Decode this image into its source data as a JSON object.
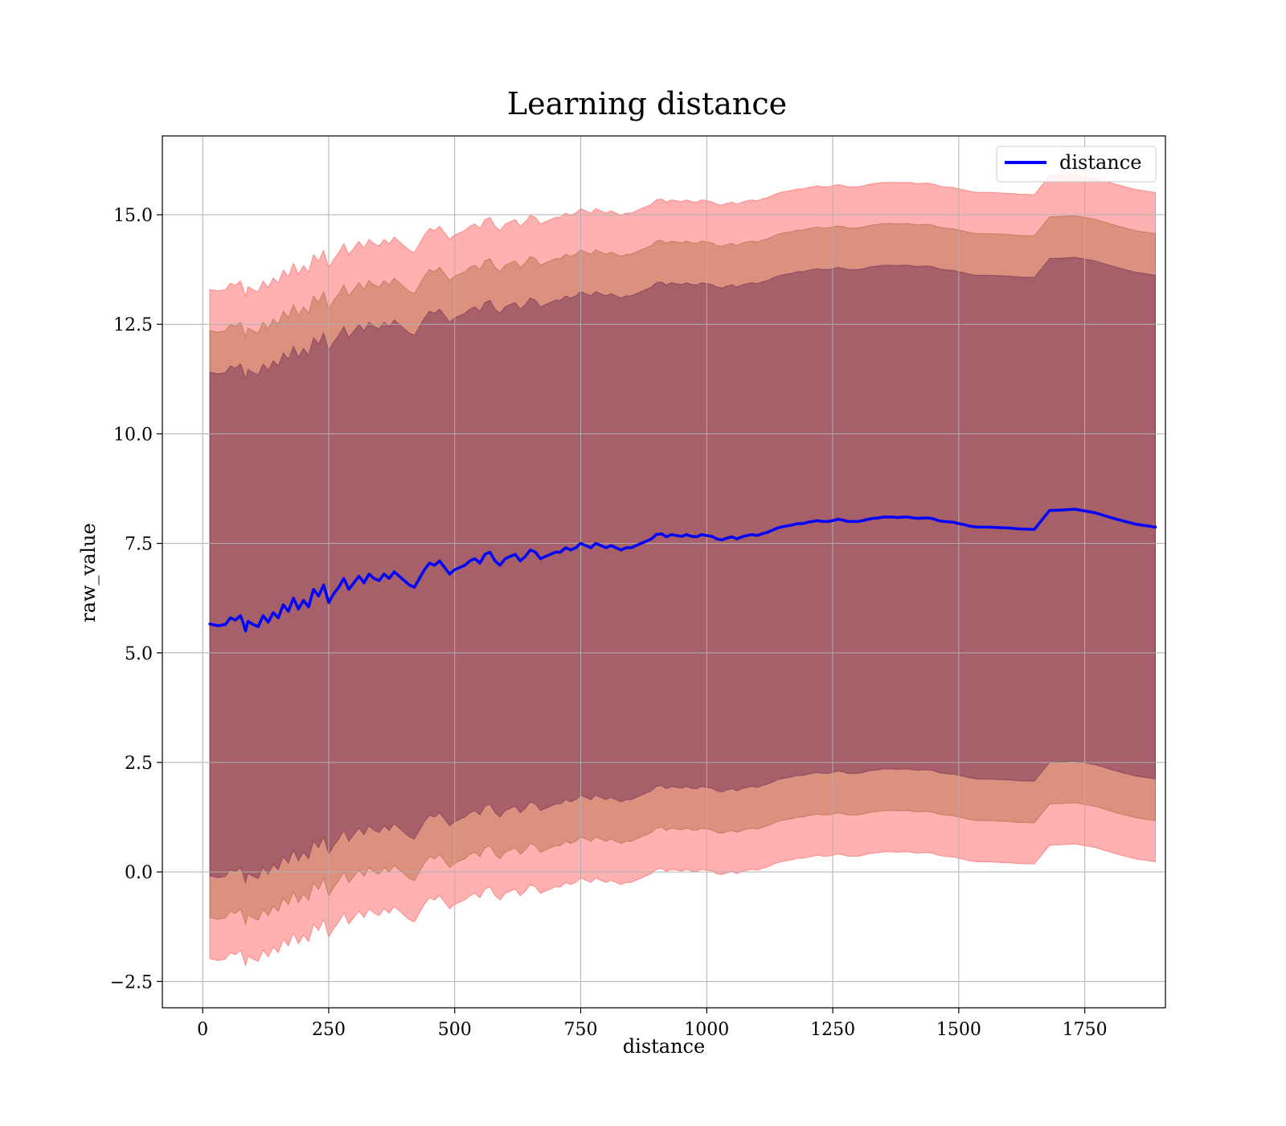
{
  "chart_data": {
    "type": "line",
    "title": "Learning distance",
    "xlabel": "distance",
    "ylabel": "raw_value",
    "xlim": [
      -80,
      1910
    ],
    "ylim": [
      -3.1,
      16.8
    ],
    "x_ticks": [
      0,
      250,
      500,
      750,
      1000,
      1250,
      1500,
      1750
    ],
    "x_tick_labels": [
      "0",
      "250",
      "500",
      "750",
      "1000",
      "1250",
      "1500",
      "1750"
    ],
    "y_ticks": [
      -2.5,
      0.0,
      2.5,
      5.0,
      7.5,
      10.0,
      12.5,
      15.0
    ],
    "y_tick_labels": [
      "−2.5",
      "0.0",
      "2.5",
      "5.0",
      "7.5",
      "10.0",
      "12.5",
      "15.0"
    ],
    "grid": true,
    "legend_position": "top-right",
    "series": [
      {
        "name": "distance",
        "color": "#0000ff",
        "x": [
          14,
          30,
          45,
          55,
          65,
          75,
          80,
          85,
          90,
          100,
          110,
          120,
          130,
          140,
          150,
          160,
          170,
          180,
          190,
          200,
          210,
          220,
          230,
          240,
          250,
          260,
          270,
          280,
          290,
          300,
          310,
          320,
          330,
          340,
          350,
          360,
          370,
          380,
          390,
          400,
          410,
          420,
          430,
          440,
          450,
          460,
          470,
          480,
          490,
          500,
          510,
          520,
          530,
          540,
          550,
          560,
          570,
          580,
          590,
          600,
          610,
          620,
          630,
          640,
          650,
          660,
          670,
          680,
          690,
          700,
          710,
          720,
          730,
          740,
          750,
          760,
          770,
          780,
          790,
          800,
          810,
          820,
          830,
          840,
          850,
          860,
          870,
          880,
          890,
          900,
          910,
          920,
          930,
          940,
          950,
          960,
          970,
          980,
          990,
          1000,
          1010,
          1020,
          1030,
          1040,
          1050,
          1060,
          1070,
          1080,
          1090,
          1100,
          1110,
          1120,
          1130,
          1140,
          1150,
          1160,
          1170,
          1180,
          1190,
          1200,
          1210,
          1220,
          1230,
          1240,
          1250,
          1260,
          1270,
          1280,
          1290,
          1300,
          1310,
          1320,
          1330,
          1340,
          1350,
          1360,
          1370,
          1380,
          1390,
          1400,
          1410,
          1420,
          1430,
          1440,
          1450,
          1460,
          1470,
          1480,
          1490,
          1500,
          1510,
          1520,
          1530,
          1540,
          1560,
          1580,
          1600,
          1620,
          1650,
          1680,
          1700,
          1730,
          1770,
          1810,
          1850,
          1890
        ],
        "values": [
          5.66,
          5.62,
          5.65,
          5.8,
          5.75,
          5.85,
          5.7,
          5.5,
          5.72,
          5.65,
          5.6,
          5.85,
          5.7,
          5.92,
          5.8,
          6.1,
          5.95,
          6.25,
          6.0,
          6.2,
          6.05,
          6.45,
          6.3,
          6.55,
          6.15,
          6.35,
          6.5,
          6.7,
          6.45,
          6.6,
          6.75,
          6.6,
          6.8,
          6.7,
          6.65,
          6.8,
          6.7,
          6.85,
          6.75,
          6.65,
          6.55,
          6.5,
          6.7,
          6.9,
          7.05,
          7.0,
          7.1,
          6.95,
          6.8,
          6.9,
          6.95,
          7.0,
          7.1,
          7.15,
          7.05,
          7.25,
          7.3,
          7.1,
          7.0,
          7.15,
          7.2,
          7.25,
          7.1,
          7.2,
          7.35,
          7.3,
          7.15,
          7.2,
          7.25,
          7.3,
          7.3,
          7.4,
          7.35,
          7.4,
          7.5,
          7.45,
          7.4,
          7.5,
          7.45,
          7.4,
          7.45,
          7.4,
          7.35,
          7.4,
          7.4,
          7.45,
          7.5,
          7.55,
          7.6,
          7.7,
          7.72,
          7.65,
          7.7,
          7.68,
          7.66,
          7.7,
          7.66,
          7.65,
          7.7,
          7.68,
          7.66,
          7.6,
          7.58,
          7.62,
          7.65,
          7.6,
          7.65,
          7.68,
          7.7,
          7.68,
          7.72,
          7.75,
          7.8,
          7.85,
          7.88,
          7.9,
          7.92,
          7.95,
          7.95,
          7.98,
          8.0,
          8.02,
          8.0,
          8.0,
          8.02,
          8.05,
          8.03,
          8.0,
          8.0,
          8.0,
          8.02,
          8.05,
          8.07,
          8.08,
          8.1,
          8.1,
          8.1,
          8.09,
          8.1,
          8.1,
          8.08,
          8.07,
          8.08,
          8.08,
          8.06,
          8.02,
          8.0,
          7.99,
          7.98,
          7.95,
          7.93,
          7.9,
          7.88,
          7.87,
          7.87,
          7.86,
          7.85,
          7.83,
          7.82,
          8.25,
          8.26,
          8.28,
          8.2,
          8.06,
          7.94,
          7.87
        ]
      }
    ],
    "bands": [
      {
        "offset": 7.64,
        "color": "#ff0000",
        "opacity": 0.31
      },
      {
        "offset": 6.7,
        "color": "#804000",
        "opacity": 0.28
      },
      {
        "offset": 5.75,
        "color": "#400040",
        "opacity": 0.34
      }
    ]
  }
}
